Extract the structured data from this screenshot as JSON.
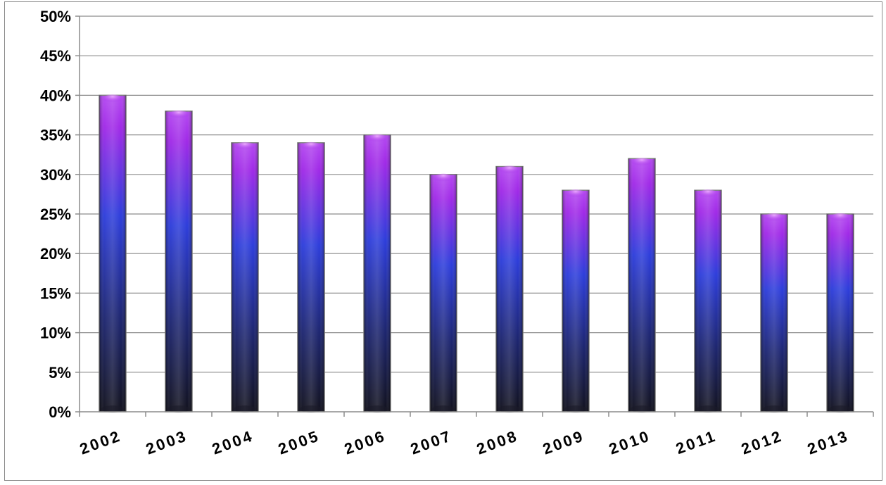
{
  "chart_data": {
    "type": "bar",
    "title": "",
    "xlabel": "",
    "ylabel": "",
    "categories": [
      "2002",
      "2003",
      "2004",
      "2005",
      "2006",
      "2007",
      "2008",
      "2009",
      "2010",
      "2011",
      "2012",
      "2013"
    ],
    "values": [
      40,
      38,
      34,
      34,
      35,
      30,
      31,
      28,
      32,
      28,
      25,
      25
    ],
    "value_unit": "%",
    "ylim": [
      0,
      50
    ],
    "y_ticks": [
      "0%",
      "5%",
      "10%",
      "15%",
      "20%",
      "25%",
      "30%",
      "35%",
      "40%",
      "45%",
      "50%"
    ],
    "y_tick_values": [
      0,
      5,
      10,
      15,
      20,
      25,
      30,
      35,
      40,
      45,
      50
    ],
    "grid": true,
    "legend": "none",
    "colors": {
      "bar_top": "#9b1ee6",
      "bar_mid": "#2233d9",
      "bar_bottom": "#050512",
      "gridline": "#8c8c8c",
      "border": "#8a8a8a"
    }
  }
}
